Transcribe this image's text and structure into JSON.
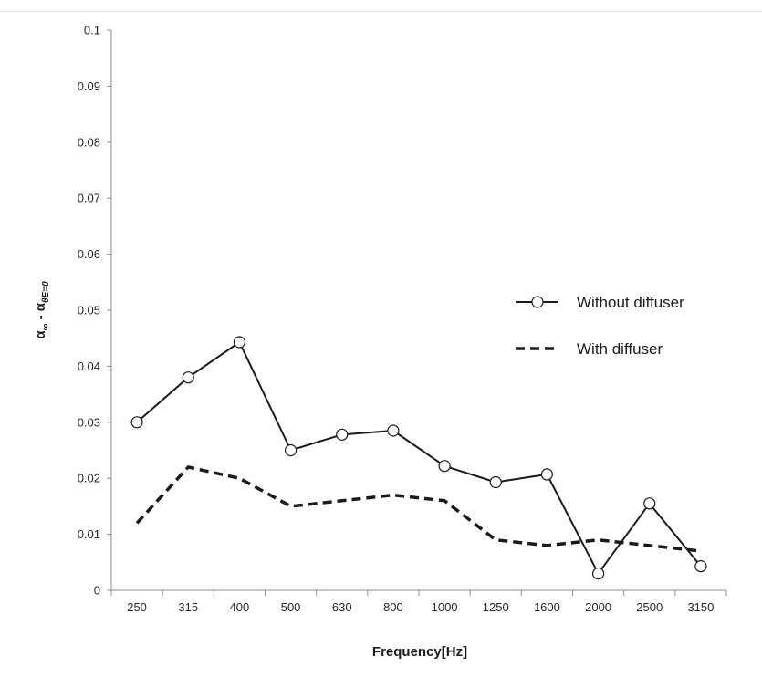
{
  "chart_data": {
    "type": "line",
    "title": "",
    "xlabel": "Frequency[Hz]",
    "ylabel_main": "α",
    "ylabel_sub1": "∞",
    "ylabel_mid": " - α",
    "ylabel_sub2": "θE=0",
    "categories": [
      "250",
      "315",
      "400",
      "500",
      "630",
      "800",
      "1000",
      "1250",
      "1600",
      "2000",
      "2500",
      "3150"
    ],
    "ylim": [
      0,
      0.1
    ],
    "yticks": [
      0,
      0.01,
      0.02,
      0.03,
      0.04,
      0.05,
      0.06,
      0.07,
      0.08,
      0.09,
      0.1
    ],
    "ytick_labels": [
      "0",
      "0.01",
      "0.02",
      "0.03",
      "0.04",
      "0.05",
      "0.06",
      "0.07",
      "0.08",
      "0.09",
      "0.1"
    ],
    "grid": false,
    "legend_position": "right",
    "series": [
      {
        "name": "Without diffuser",
        "style": "solid-circle-markers",
        "color": "#1a1a1a",
        "values": [
          0.03,
          0.038,
          0.0443,
          0.025,
          0.0278,
          0.0285,
          0.0222,
          0.0193,
          0.0207,
          0.003,
          0.0155,
          0.0043
        ]
      },
      {
        "name": "With diffuser",
        "style": "dashed",
        "color": "#1a1a1a",
        "values": [
          0.012,
          0.022,
          0.02,
          0.015,
          0.016,
          0.017,
          0.016,
          0.009,
          0.008,
          0.009,
          0.008,
          0.007
        ]
      }
    ]
  }
}
